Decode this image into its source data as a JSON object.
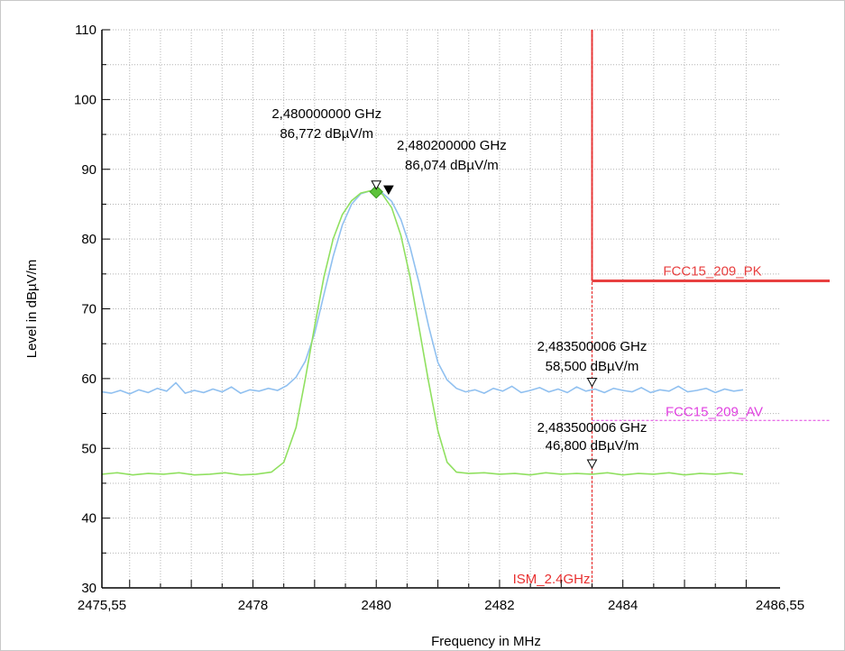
{
  "chart_data": {
    "type": "line",
    "xlabel": "Frequency in MHz",
    "ylabel": "Level in dBµV/m",
    "xlim": [
      2475.55,
      2486.55
    ],
    "ylim": [
      30,
      110
    ],
    "grid": true,
    "x_ticks": [
      {
        "value": 2475.55,
        "label": "2475,55"
      },
      {
        "value": 2478,
        "label": "2478"
      },
      {
        "value": 2480,
        "label": "2480"
      },
      {
        "value": 2482,
        "label": "2482"
      },
      {
        "value": 2484,
        "label": "2484"
      },
      {
        "value": 2486.55,
        "label": "2486,55"
      }
    ],
    "y_ticks": [
      {
        "value": 30,
        "label": "30"
      },
      {
        "value": 40,
        "label": "40"
      },
      {
        "value": 50,
        "label": "50"
      },
      {
        "value": 60,
        "label": "60"
      },
      {
        "value": 70,
        "label": "70"
      },
      {
        "value": 80,
        "label": "80"
      },
      {
        "value": 90,
        "label": "90"
      },
      {
        "value": 100,
        "label": "100"
      },
      {
        "value": 110,
        "label": "110"
      }
    ],
    "series": [
      {
        "color": "#90c0f0",
        "x": [
          2475.55,
          2475.7,
          2475.85,
          2476.0,
          2476.15,
          2476.3,
          2476.45,
          2476.6,
          2476.75,
          2476.9,
          2477.05,
          2477.2,
          2477.35,
          2477.5,
          2477.65,
          2477.8,
          2477.95,
          2478.1,
          2478.25,
          2478.4,
          2478.55,
          2478.7,
          2478.85,
          2479.0,
          2479.15,
          2479.3,
          2479.45,
          2479.6,
          2479.75,
          2479.9,
          2480.0,
          2480.1,
          2480.25,
          2480.4,
          2480.55,
          2480.7,
          2480.85,
          2481.0,
          2481.15,
          2481.3,
          2481.45,
          2481.6,
          2481.75,
          2481.9,
          2482.05,
          2482.2,
          2482.35,
          2482.5,
          2482.65,
          2482.8,
          2482.95,
          2483.1,
          2483.25,
          2483.4,
          2483.55,
          2483.7,
          2483.85,
          2484.0,
          2484.15,
          2484.3,
          2484.45,
          2484.6,
          2484.75,
          2484.9,
          2485.05,
          2485.2,
          2485.35,
          2485.5,
          2485.65,
          2485.8,
          2485.95
        ],
        "values": [
          58.1,
          57.9,
          58.3,
          57.8,
          58.4,
          58.0,
          58.6,
          58.2,
          59.4,
          57.9,
          58.3,
          58.0,
          58.5,
          58.1,
          58.8,
          57.9,
          58.4,
          58.2,
          58.6,
          58.3,
          59.0,
          60.2,
          62.5,
          66.5,
          72.0,
          77.5,
          82.0,
          85.0,
          86.5,
          86.9,
          86.8,
          86.6,
          85.4,
          82.8,
          78.8,
          73.5,
          67.5,
          62.3,
          59.8,
          58.6,
          58.1,
          58.4,
          57.9,
          58.6,
          58.2,
          58.9,
          58.0,
          58.3,
          58.7,
          58.1,
          58.5,
          58.0,
          58.8,
          58.2,
          58.5,
          58.0,
          58.6,
          58.3,
          58.1,
          58.7,
          58.0,
          58.4,
          58.2,
          58.9,
          58.1,
          58.3,
          58.6,
          58.0,
          58.5,
          58.2,
          58.4
        ]
      },
      {
        "color": "#90e060",
        "x": [
          2475.55,
          2475.8,
          2476.05,
          2476.3,
          2476.55,
          2476.8,
          2477.05,
          2477.3,
          2477.55,
          2477.8,
          2478.05,
          2478.3,
          2478.5,
          2478.7,
          2478.85,
          2479.0,
          2479.15,
          2479.3,
          2479.45,
          2479.6,
          2479.75,
          2479.9,
          2480.0,
          2480.1,
          2480.25,
          2480.4,
          2480.55,
          2480.7,
          2480.85,
          2481.0,
          2481.15,
          2481.3,
          2481.5,
          2481.75,
          2482.0,
          2482.25,
          2482.5,
          2482.75,
          2483.0,
          2483.25,
          2483.5,
          2483.75,
          2484.0,
          2484.25,
          2484.5,
          2484.75,
          2485.0,
          2485.25,
          2485.5,
          2485.75,
          2485.95
        ],
        "values": [
          46.3,
          46.5,
          46.2,
          46.4,
          46.3,
          46.5,
          46.2,
          46.3,
          46.5,
          46.2,
          46.3,
          46.6,
          48.0,
          53.0,
          60.0,
          67.5,
          74.5,
          80.0,
          83.5,
          85.5,
          86.6,
          86.9,
          86.8,
          86.4,
          84.5,
          80.5,
          74.5,
          67.0,
          59.5,
          52.5,
          48.0,
          46.6,
          46.4,
          46.5,
          46.3,
          46.4,
          46.2,
          46.5,
          46.3,
          46.4,
          46.3,
          46.5,
          46.2,
          46.4,
          46.3,
          46.5,
          46.2,
          46.4,
          46.3,
          46.5,
          46.3
        ]
      }
    ],
    "limit_lines": [
      {
        "name": "FCC15_209_PK",
        "color": "#e84040",
        "x_start": 2483.5,
        "value": 74,
        "vertical_top": 110
      },
      {
        "name": "FCC15_209_AV",
        "color": "#e040e0",
        "x_start": 2483.5,
        "value": 54
      }
    ],
    "markers": [
      {
        "x": 2480.0,
        "y": 86.772,
        "freq_label": "2,480000000 GHz",
        "level_label": "86,772 dBµV/m",
        "filled": false
      },
      {
        "x": 2480.2,
        "y": 86.074,
        "freq_label": "2,480200000 GHz",
        "level_label": "86,074 dBµV/m",
        "filled": true
      },
      {
        "x": 2483.5,
        "y": 58.5,
        "freq_label": "2,483500006 GHz",
        "level_label": "58,500 dBµV/m",
        "filled": false
      },
      {
        "x": 2483.5,
        "y": 46.8,
        "freq_label": "2,483500006 GHz",
        "level_label": "46,800 dBµV/m",
        "filled": false
      }
    ],
    "band_edge": {
      "label": "ISM_2.4GHz",
      "x": 2483.5,
      "color": "#e83030"
    }
  }
}
